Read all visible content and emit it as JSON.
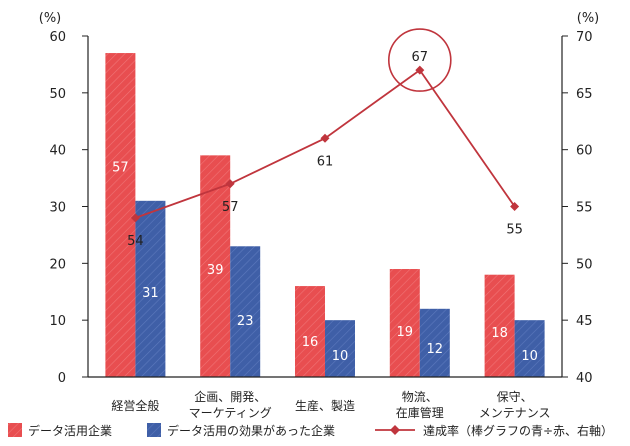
{
  "chart_data": {
    "type": "bar",
    "categories": [
      [
        "経営全般"
      ],
      [
        "企画、開発、",
        "マーケティング"
      ],
      [
        "生産、製造"
      ],
      [
        "物流、",
        "在庫管理"
      ],
      [
        "保守、",
        "メンテナンス"
      ]
    ],
    "left_axis": {
      "unit": "(%)",
      "min": 0,
      "max": 60,
      "ticks": [
        0,
        10,
        20,
        30,
        40,
        50,
        60
      ]
    },
    "right_axis": {
      "unit": "(%)",
      "min": 40,
      "max": 70,
      "ticks": [
        40,
        45,
        50,
        55,
        60,
        65,
        70
      ]
    },
    "series": [
      {
        "name": "データ活用企業",
        "kind": "bar",
        "axis": "left",
        "values": [
          57,
          39,
          16,
          19,
          18
        ],
        "color": "#e84e50"
      },
      {
        "name": "データ活用の効果があった企業",
        "kind": "bar",
        "axis": "left",
        "values": [
          31,
          23,
          10,
          12,
          10
        ],
        "color": "#3f5fa7"
      },
      {
        "name": "達成率（棒グラフの青÷赤、右軸）",
        "kind": "line",
        "axis": "right",
        "values": [
          54,
          57,
          61,
          67,
          55
        ],
        "color": "#c0353d"
      }
    ],
    "highlight": {
      "series": 2,
      "index": 3,
      "shape": "circle"
    },
    "grid": false,
    "legend": "bottom"
  }
}
